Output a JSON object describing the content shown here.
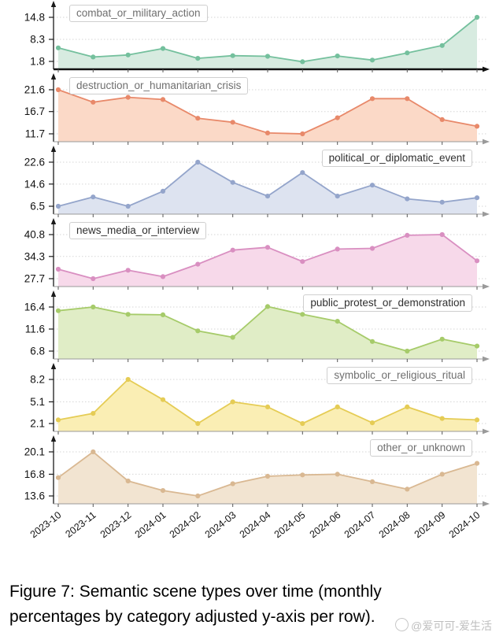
{
  "figure": {
    "caption": {
      "line1": "Figure 7:  Semantic scene types over time (monthly",
      "line2": "percentages by category adjusted y-axis per row)."
    },
    "watermark": "@爱可可-爱生活"
  },
  "chart_data": {
    "type": "area",
    "layout": "vertical small multiples, one row per category, shared x axis, y-axis adjusted per row",
    "grid": "dotted horizontal gridlines at each y tick",
    "legend_position": "boxed label inside each panel",
    "x_tick_rotation_deg": -38,
    "categories": [
      "2023-10",
      "2023-11",
      "2023-12",
      "2024-01",
      "2024-02",
      "2024-03",
      "2024-04",
      "2024-05",
      "2024-06",
      "2024-07",
      "2024-08",
      "2024-09",
      "2024-10"
    ],
    "series": [
      {
        "name": "combat_or_military_action",
        "values": [
          5.8,
          3.1,
          3.7,
          5.6,
          2.7,
          3.5,
          3.3,
          1.7,
          3.4,
          2.2,
          4.3,
          6.5,
          14.8
        ],
        "yticks": [
          14.8,
          8.3,
          1.8
        ],
        "line_color": "#74c09d",
        "fill_color": "#d7ebe0",
        "label_side": "left",
        "label_text_color": "#6f6f6f",
        "axis_style": "bold"
      },
      {
        "name": "destruction_or_humanitarian_crisis",
        "values": [
          21.6,
          18.8,
          19.9,
          19.4,
          15.2,
          14.3,
          11.9,
          11.7,
          15.3,
          19.6,
          19.6,
          14.9,
          13.4
        ],
        "yticks": [
          21.6,
          16.7,
          11.7
        ],
        "line_color": "#e8896a",
        "fill_color": "#fbd9c7",
        "label_side": "left",
        "label_text_color": "#6f6f6f",
        "axis_style": "thin"
      },
      {
        "name": "political_or_diplomatic_event",
        "values": [
          6.5,
          9.9,
          6.5,
          12.0,
          22.6,
          15.2,
          10.2,
          18.8,
          10.2,
          14.2,
          9.2,
          8.0,
          9.6
        ],
        "yticks": [
          22.6,
          14.6,
          6.5
        ],
        "line_color": "#94a5cb",
        "fill_color": "#dde3f0",
        "label_side": "right",
        "label_text_color": "#2f2f2f",
        "axis_style": "thin"
      },
      {
        "name": "news_media_or_interview",
        "values": [
          30.5,
          27.7,
          30.2,
          28.3,
          32.0,
          36.2,
          37.0,
          32.8,
          36.5,
          36.7,
          40.6,
          40.8,
          33.0
        ],
        "yticks": [
          40.8,
          34.3,
          27.7
        ],
        "line_color": "#d98fc1",
        "fill_color": "#f7d9ea",
        "label_side": "left",
        "label_text_color": "#2f2f2f",
        "axis_style": "thin"
      },
      {
        "name": "public_protest_or_demonstration",
        "values": [
          15.6,
          16.4,
          14.8,
          14.7,
          11.2,
          9.8,
          16.5,
          14.8,
          13.3,
          8.9,
          6.8,
          9.4,
          7.9
        ],
        "yticks": [
          16.4,
          11.6,
          6.8
        ],
        "line_color": "#a6cb6a",
        "fill_color": "#e0edc6",
        "label_side": "right",
        "label_text_color": "#2f2f2f",
        "axis_style": "thin"
      },
      {
        "name": "symbolic_or_religious_ritual",
        "values": [
          2.6,
          3.5,
          8.2,
          5.4,
          2.1,
          5.1,
          4.4,
          2.1,
          4.4,
          2.2,
          4.4,
          2.8,
          2.6
        ],
        "yticks": [
          8.2,
          5.1,
          2.1
        ],
        "line_color": "#e5cc55",
        "fill_color": "#faeeb4",
        "label_side": "right",
        "label_text_color": "#6f6f6f",
        "axis_style": "thin"
      },
      {
        "name": "other_or_unknown",
        "values": [
          16.3,
          20.1,
          15.8,
          14.4,
          13.6,
          15.4,
          16.5,
          16.7,
          16.8,
          15.7,
          14.6,
          16.8,
          18.4
        ],
        "yticks": [
          20.1,
          16.8,
          13.6
        ],
        "line_color": "#d9b892",
        "fill_color": "#f2e4d1",
        "label_side": "right",
        "label_text_color": "#6f6f6f",
        "axis_style": "thin"
      }
    ]
  }
}
